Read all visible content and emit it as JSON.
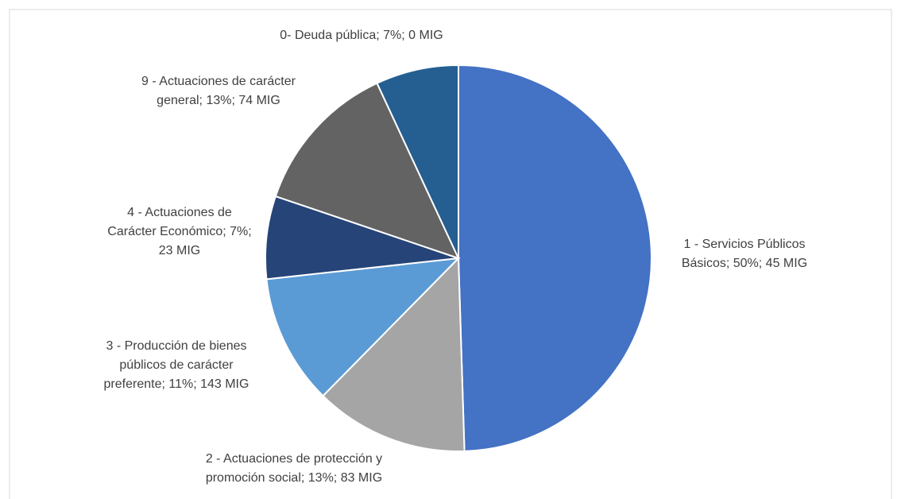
{
  "chart_data": {
    "type": "pie",
    "values": [
      50,
      13,
      11,
      7,
      13,
      7
    ],
    "value_labels": [
      "1 - Servicios Públicos Básicos; 50%; 45 MIG",
      "2 - Actuaciones de protección y promoción social; 13%; 83 MIG",
      "3 - Producción de bienes públicos de carácter preferente; 11%; 143 MIG",
      "4 - Actuaciones de Carácter Económico; 7%; 23 MIG",
      "9 - Actuaciones de carácter general; 13%; 74 MIG",
      "0- Deuda pública; 7%; 0 MIG"
    ],
    "colors": [
      "#4472c4",
      "#a5a5a5",
      "#5b9bd5",
      "#264478",
      "#636363",
      "#255e91"
    ]
  }
}
